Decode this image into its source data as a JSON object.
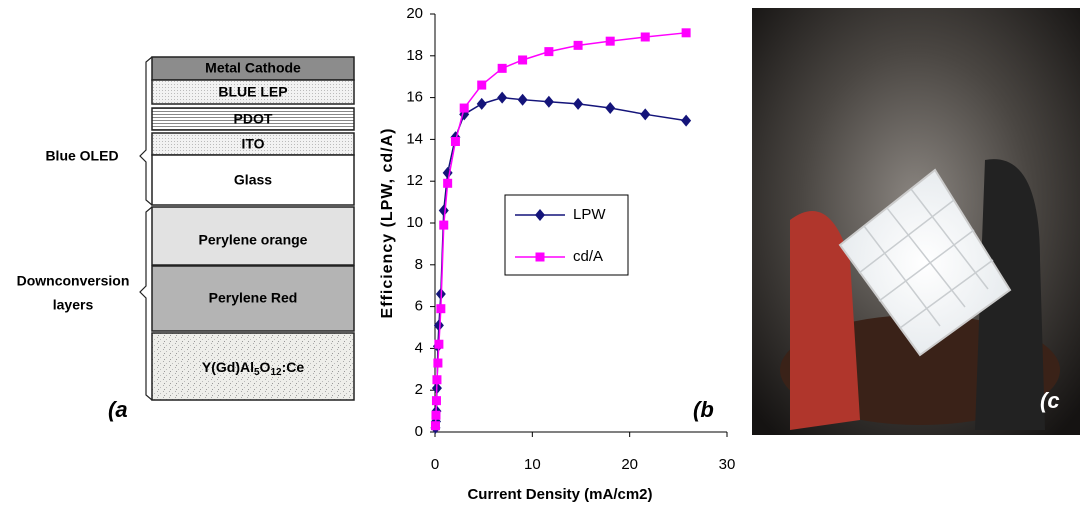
{
  "diagram": {
    "layers": [
      {
        "label": "Metal Cathode"
      },
      {
        "label": "BLUE LEP"
      },
      {
        "label": "PDOT"
      },
      {
        "label": "ITO"
      },
      {
        "label": "Glass"
      },
      {
        "label": "Perylene orange"
      },
      {
        "label": "Perylene Red"
      },
      {
        "label_parts": [
          "Y(Gd)Al",
          "5",
          "O",
          "12",
          ":Ce"
        ]
      }
    ],
    "groups": [
      {
        "lines": [
          "Blue OLED"
        ]
      },
      {
        "lines": [
          "Downconversion",
          "layers"
        ]
      }
    ],
    "panel_label": "(a"
  },
  "chart_data": {
    "type": "line",
    "x_label": "Current Density (mA/cm2)",
    "y_label": "Efficiency (LPW, cd/A)",
    "panel_label": "(b",
    "xlim": [
      0,
      30
    ],
    "xticks": [
      0,
      10,
      20,
      30
    ],
    "ylim": [
      0,
      20
    ],
    "yticks": [
      0,
      2,
      4,
      6,
      8,
      10,
      12,
      14,
      16,
      18,
      20
    ],
    "grid": false,
    "series": [
      {
        "name": "LPW",
        "color": "#14147a",
        "marker": "diamond",
        "x": [
          0.05,
          0.1,
          0.15,
          0.2,
          0.3,
          0.4,
          0.6,
          0.9,
          1.3,
          2.1,
          3.0,
          4.8,
          6.9,
          9.0,
          11.7,
          14.7,
          18.0,
          21.6,
          25.8
        ],
        "values": [
          0.2,
          0.5,
          1.0,
          2.1,
          4.1,
          5.1,
          6.6,
          10.6,
          12.4,
          14.1,
          15.2,
          15.7,
          16.0,
          15.9,
          15.8,
          15.7,
          15.5,
          15.2,
          14.9
        ]
      },
      {
        "name": "cd/A",
        "color": "#ff00ff",
        "marker": "square",
        "x": [
          0.05,
          0.1,
          0.15,
          0.2,
          0.3,
          0.4,
          0.6,
          0.9,
          1.3,
          2.1,
          3.0,
          4.8,
          6.9,
          9.0,
          11.7,
          14.7,
          18.0,
          21.6,
          25.8
        ],
        "values": [
          0.3,
          0.8,
          1.5,
          2.5,
          3.3,
          4.2,
          5.9,
          9.9,
          11.9,
          13.9,
          15.5,
          16.6,
          17.4,
          17.8,
          18.2,
          18.5,
          18.7,
          18.9,
          19.1
        ]
      }
    ]
  },
  "photo": {
    "panel_label": "(c"
  }
}
